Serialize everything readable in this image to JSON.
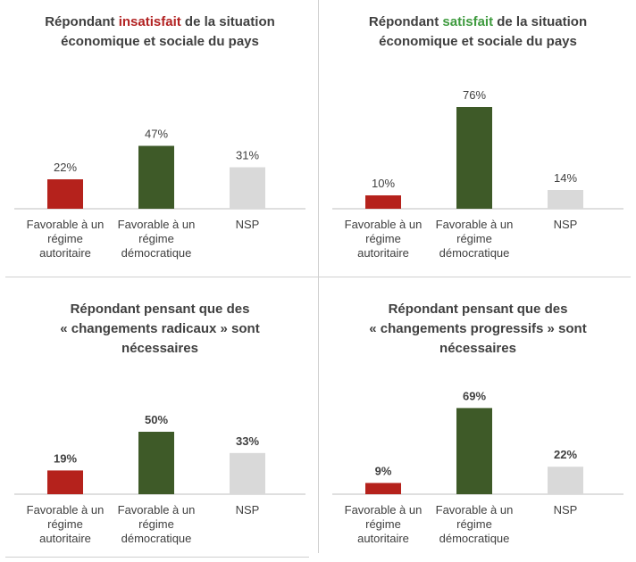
{
  "colors": {
    "red": "#b5221c",
    "green": "#3e5a28",
    "gray": "#d9d9d9",
    "kw_red": "#b22222",
    "kw_green": "#3f9b3f"
  },
  "chart_data": [
    {
      "type": "bar",
      "title": "Répondant insatisfait de la situation économique et sociale du pays",
      "title_parts": {
        "line1_pre": "Répondant ",
        "line1_kw": "insatisfait",
        "line1_post": " de la situation",
        "line2": "économique et sociale du pays"
      },
      "categories": [
        [
          "Favorable à un",
          "régime",
          "autoritaire"
        ],
        [
          "Favorable à un",
          "régime",
          "démocratique"
        ],
        [
          "NSP"
        ]
      ],
      "values": [
        22,
        47,
        31
      ],
      "value_labels": [
        "22%",
        "47%",
        "31%"
      ],
      "ylim": [
        0,
        100
      ],
      "bold_labels": false
    },
    {
      "type": "bar",
      "title": "Répondant satisfait de la situation économique et sociale du pays",
      "title_parts": {
        "line1_pre": "Répondant ",
        "line1_kw": "satisfait",
        "line1_post": " de la situation",
        "line2": "économique et sociale du pays"
      },
      "categories": [
        [
          "Favorable à un",
          "régime",
          "autoritaire"
        ],
        [
          "Favorable à un",
          "régime",
          "démocratique"
        ],
        [
          "NSP"
        ]
      ],
      "values": [
        10,
        76,
        14
      ],
      "value_labels": [
        "10%",
        "76%",
        "14%"
      ],
      "ylim": [
        0,
        100
      ],
      "bold_labels": false
    },
    {
      "type": "bar",
      "title": "Répondant pensant que des « changements radicaux » sont nécessaires",
      "title_lines": [
        "Répondant pensant que des",
        "« changements radicaux » sont",
        "nécessaires"
      ],
      "categories": [
        [
          "Favorable à un",
          "régime",
          "autoritaire"
        ],
        [
          "Favorable à un",
          "régime",
          "démocratique"
        ],
        [
          "NSP"
        ]
      ],
      "values": [
        19,
        50,
        33
      ],
      "value_labels": [
        "19%",
        "50%",
        "33%"
      ],
      "ylim": [
        0,
        100
      ],
      "bold_labels": true
    },
    {
      "type": "bar",
      "title": "Répondant pensant que des « changements progressifs » sont nécessaires",
      "title_lines": [
        "Répondant pensant que des",
        "« changements progressifs » sont",
        "nécessaires"
      ],
      "categories": [
        [
          "Favorable à un",
          "régime",
          "autoritaire"
        ],
        [
          "Favorable à un",
          "régime",
          "démocratique"
        ],
        [
          "NSP"
        ]
      ],
      "values": [
        9,
        69,
        22
      ],
      "value_labels": [
        "9%",
        "69%",
        "22%"
      ],
      "ylim": [
        0,
        100
      ],
      "bold_labels": true
    }
  ]
}
